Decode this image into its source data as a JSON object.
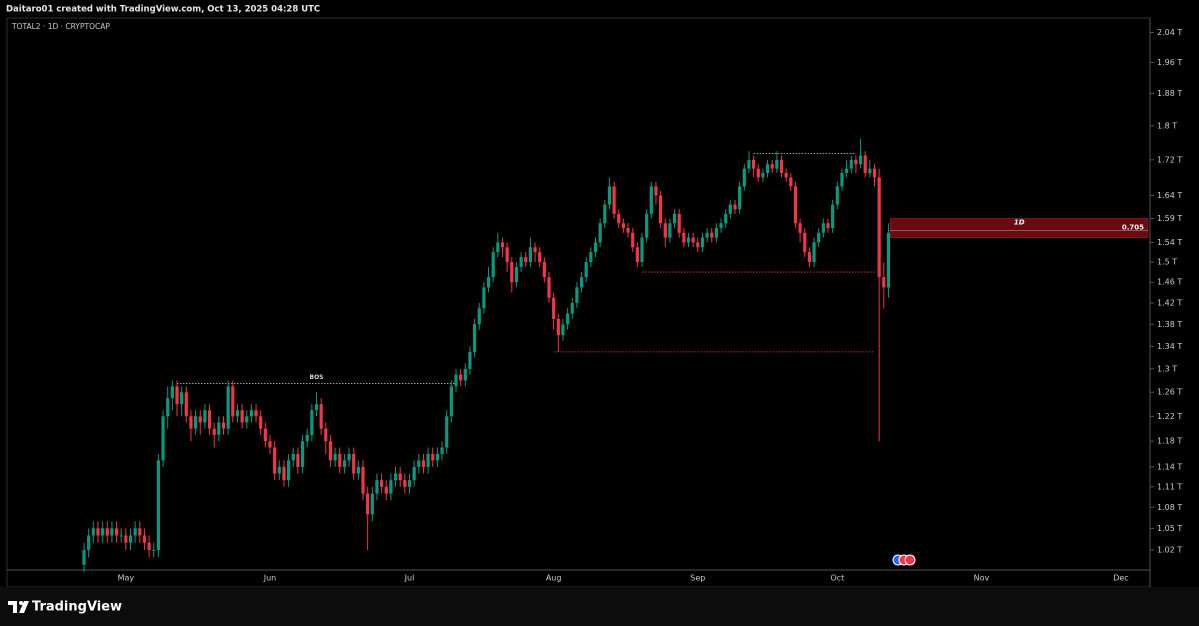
{
  "header": "Daitaro01 created with TradingView.com, Oct 13, 2025 04:28 UTC",
  "footer": "TradingView",
  "chart_data": {
    "type": "candlestick",
    "title": "TOTAL2 · 1D · CRYPTOCAP",
    "xticks": [
      "May",
      "Jun",
      "Jul",
      "Aug",
      "Sep",
      "Oct",
      "Nov",
      "Dec"
    ],
    "log_scale": true,
    "grid": false,
    "up_color": "#089981",
    "down_color": "#f23645",
    "ylim": [
      0.993,
      2.08
    ],
    "yticks": [
      {
        "value": 2.04,
        "label": "2.04 T"
      },
      {
        "value": 1.96,
        "label": "1.96 T"
      },
      {
        "value": 1.88,
        "label": "1.88 T"
      },
      {
        "value": 1.8,
        "label": "1.8 T"
      },
      {
        "value": 1.72,
        "label": "1.72 T"
      },
      {
        "value": 1.64,
        "label": "1.64 T"
      },
      {
        "value": 1.59,
        "label": "1.59 T"
      },
      {
        "value": 1.54,
        "label": "1.54 T"
      },
      {
        "value": 1.5,
        "label": "1.5 T"
      },
      {
        "value": 1.46,
        "label": "1.46 T"
      },
      {
        "value": 1.42,
        "label": "1.42 T"
      },
      {
        "value": 1.38,
        "label": "1.38 T"
      },
      {
        "value": 1.34,
        "label": "1.34 T"
      },
      {
        "value": 1.3,
        "label": "1.3 T"
      },
      {
        "value": 1.26,
        "label": "1.26 T"
      },
      {
        "value": 1.22,
        "label": "1.22 T"
      },
      {
        "value": 1.18,
        "label": "1.18 T"
      },
      {
        "value": 1.14,
        "label": "1.14 T"
      },
      {
        "value": 1.11,
        "label": "1.11 T"
      },
      {
        "value": 1.08,
        "label": "1.08 T"
      },
      {
        "value": 1.05,
        "label": "1.05 T"
      },
      {
        "value": 1.02,
        "label": "1.02 T"
      }
    ],
    "levels": [
      {
        "value": 1.275,
        "label": "BOS",
        "color": "#d1d4dc"
      },
      {
        "value": 1.48,
        "color": "#f23645"
      },
      {
        "value": 1.33,
        "color": "#f23645"
      },
      {
        "value": 1.735,
        "color": "#d1d4dc"
      }
    ],
    "zone": {
      "label": "1D",
      "range": [
        1.55,
        1.59
      ],
      "fib": 0.705,
      "fib_value": 1.565,
      "color": "#7a0c12"
    },
    "candles": [
      [
        1.0,
        1.03,
        0.99,
        1.02
      ],
      [
        1.02,
        1.05,
        1.01,
        1.04
      ],
      [
        1.04,
        1.06,
        1.03,
        1.05
      ],
      [
        1.05,
        1.06,
        1.03,
        1.04
      ],
      [
        1.04,
        1.06,
        1.03,
        1.05
      ],
      [
        1.05,
        1.06,
        1.03,
        1.04
      ],
      [
        1.04,
        1.06,
        1.03,
        1.05
      ],
      [
        1.05,
        1.06,
        1.03,
        1.04
      ],
      [
        1.04,
        1.05,
        1.03,
        1.04
      ],
      [
        1.04,
        1.05,
        1.02,
        1.03
      ],
      [
        1.03,
        1.05,
        1.02,
        1.04
      ],
      [
        1.04,
        1.06,
        1.03,
        1.05
      ],
      [
        1.05,
        1.06,
        1.03,
        1.04
      ],
      [
        1.04,
        1.05,
        1.02,
        1.03
      ],
      [
        1.03,
        1.04,
        1.01,
        1.02
      ],
      [
        1.02,
        1.03,
        1.01,
        1.02
      ],
      [
        1.02,
        1.16,
        1.01,
        1.15
      ],
      [
        1.15,
        1.23,
        1.14,
        1.22
      ],
      [
        1.22,
        1.27,
        1.2,
        1.25
      ],
      [
        1.25,
        1.28,
        1.23,
        1.27
      ],
      [
        1.27,
        1.28,
        1.22,
        1.24
      ],
      [
        1.24,
        1.27,
        1.22,
        1.26
      ],
      [
        1.26,
        1.27,
        1.21,
        1.22
      ],
      [
        1.22,
        1.23,
        1.18,
        1.2
      ],
      [
        1.2,
        1.23,
        1.19,
        1.22
      ],
      [
        1.22,
        1.23,
        1.19,
        1.21
      ],
      [
        1.21,
        1.24,
        1.2,
        1.23
      ],
      [
        1.23,
        1.24,
        1.19,
        1.2
      ],
      [
        1.2,
        1.21,
        1.17,
        1.19
      ],
      [
        1.19,
        1.22,
        1.18,
        1.21
      ],
      [
        1.21,
        1.22,
        1.19,
        1.2
      ],
      [
        1.2,
        1.28,
        1.19,
        1.27
      ],
      [
        1.27,
        1.28,
        1.21,
        1.22
      ],
      [
        1.22,
        1.24,
        1.21,
        1.23
      ],
      [
        1.23,
        1.24,
        1.2,
        1.21
      ],
      [
        1.21,
        1.23,
        1.2,
        1.22
      ],
      [
        1.22,
        1.24,
        1.21,
        1.23
      ],
      [
        1.23,
        1.24,
        1.21,
        1.22
      ],
      [
        1.22,
        1.23,
        1.19,
        1.2
      ],
      [
        1.2,
        1.21,
        1.17,
        1.18
      ],
      [
        1.18,
        1.19,
        1.16,
        1.17
      ],
      [
        1.17,
        1.18,
        1.12,
        1.13
      ],
      [
        1.13,
        1.15,
        1.12,
        1.14
      ],
      [
        1.14,
        1.15,
        1.11,
        1.12
      ],
      [
        1.12,
        1.16,
        1.11,
        1.15
      ],
      [
        1.15,
        1.17,
        1.14,
        1.16
      ],
      [
        1.16,
        1.17,
        1.13,
        1.14
      ],
      [
        1.14,
        1.19,
        1.13,
        1.18
      ],
      [
        1.18,
        1.2,
        1.17,
        1.19
      ],
      [
        1.19,
        1.24,
        1.18,
        1.23
      ],
      [
        1.23,
        1.26,
        1.22,
        1.24
      ],
      [
        1.24,
        1.25,
        1.19,
        1.2
      ],
      [
        1.2,
        1.21,
        1.16,
        1.18
      ],
      [
        1.18,
        1.19,
        1.14,
        1.15
      ],
      [
        1.15,
        1.17,
        1.14,
        1.16
      ],
      [
        1.16,
        1.17,
        1.13,
        1.14
      ],
      [
        1.14,
        1.16,
        1.13,
        1.15
      ],
      [
        1.15,
        1.17,
        1.14,
        1.16
      ],
      [
        1.16,
        1.17,
        1.12,
        1.13
      ],
      [
        1.13,
        1.15,
        1.12,
        1.14
      ],
      [
        1.14,
        1.15,
        1.09,
        1.1
      ],
      [
        1.1,
        1.11,
        1.02,
        1.07
      ],
      [
        1.07,
        1.11,
        1.06,
        1.1
      ],
      [
        1.1,
        1.13,
        1.09,
        1.12
      ],
      [
        1.12,
        1.13,
        1.1,
        1.11
      ],
      [
        1.11,
        1.12,
        1.09,
        1.1
      ],
      [
        1.1,
        1.13,
        1.09,
        1.12
      ],
      [
        1.12,
        1.14,
        1.11,
        1.13
      ],
      [
        1.13,
        1.14,
        1.11,
        1.12
      ],
      [
        1.12,
        1.13,
        1.1,
        1.11
      ],
      [
        1.11,
        1.13,
        1.1,
        1.12
      ],
      [
        1.12,
        1.15,
        1.11,
        1.14
      ],
      [
        1.14,
        1.16,
        1.13,
        1.15
      ],
      [
        1.15,
        1.16,
        1.13,
        1.14
      ],
      [
        1.14,
        1.17,
        1.13,
        1.16
      ],
      [
        1.16,
        1.17,
        1.14,
        1.15
      ],
      [
        1.15,
        1.17,
        1.14,
        1.16
      ],
      [
        1.16,
        1.18,
        1.15,
        1.17
      ],
      [
        1.17,
        1.23,
        1.16,
        1.22
      ],
      [
        1.22,
        1.28,
        1.21,
        1.27
      ],
      [
        1.27,
        1.3,
        1.26,
        1.29
      ],
      [
        1.29,
        1.3,
        1.27,
        1.28
      ],
      [
        1.28,
        1.31,
        1.27,
        1.3
      ],
      [
        1.3,
        1.34,
        1.29,
        1.33
      ],
      [
        1.33,
        1.39,
        1.32,
        1.38
      ],
      [
        1.38,
        1.42,
        1.37,
        1.41
      ],
      [
        1.41,
        1.46,
        1.4,
        1.45
      ],
      [
        1.45,
        1.49,
        1.44,
        1.47
      ],
      [
        1.47,
        1.53,
        1.46,
        1.52
      ],
      [
        1.52,
        1.56,
        1.51,
        1.54
      ],
      [
        1.54,
        1.55,
        1.51,
        1.53
      ],
      [
        1.53,
        1.54,
        1.48,
        1.5
      ],
      [
        1.5,
        1.51,
        1.44,
        1.46
      ],
      [
        1.46,
        1.5,
        1.45,
        1.49
      ],
      [
        1.49,
        1.52,
        1.48,
        1.51
      ],
      [
        1.51,
        1.52,
        1.49,
        1.5
      ],
      [
        1.5,
        1.55,
        1.49,
        1.53
      ],
      [
        1.53,
        1.54,
        1.5,
        1.52
      ],
      [
        1.52,
        1.53,
        1.49,
        1.5
      ],
      [
        1.5,
        1.51,
        1.46,
        1.47
      ],
      [
        1.47,
        1.48,
        1.42,
        1.43
      ],
      [
        1.43,
        1.44,
        1.37,
        1.39
      ],
      [
        1.39,
        1.4,
        1.33,
        1.36
      ],
      [
        1.36,
        1.39,
        1.35,
        1.38
      ],
      [
        1.38,
        1.41,
        1.37,
        1.4
      ],
      [
        1.4,
        1.43,
        1.39,
        1.42
      ],
      [
        1.42,
        1.46,
        1.41,
        1.45
      ],
      [
        1.45,
        1.48,
        1.44,
        1.47
      ],
      [
        1.47,
        1.51,
        1.46,
        1.5
      ],
      [
        1.5,
        1.53,
        1.49,
        1.52
      ],
      [
        1.52,
        1.55,
        1.51,
        1.54
      ],
      [
        1.54,
        1.59,
        1.53,
        1.58
      ],
      [
        1.58,
        1.63,
        1.57,
        1.62
      ],
      [
        1.62,
        1.68,
        1.61,
        1.66
      ],
      [
        1.66,
        1.67,
        1.59,
        1.6
      ],
      [
        1.6,
        1.61,
        1.57,
        1.58
      ],
      [
        1.58,
        1.59,
        1.56,
        1.57
      ],
      [
        1.57,
        1.58,
        1.55,
        1.56
      ],
      [
        1.56,
        1.57,
        1.52,
        1.53
      ],
      [
        1.53,
        1.54,
        1.49,
        1.5
      ],
      [
        1.5,
        1.56,
        1.49,
        1.55
      ],
      [
        1.55,
        1.61,
        1.54,
        1.6
      ],
      [
        1.6,
        1.67,
        1.59,
        1.66
      ],
      [
        1.66,
        1.67,
        1.62,
        1.64
      ],
      [
        1.64,
        1.65,
        1.57,
        1.58
      ],
      [
        1.58,
        1.59,
        1.53,
        1.55
      ],
      [
        1.55,
        1.59,
        1.54,
        1.58
      ],
      [
        1.58,
        1.61,
        1.57,
        1.6
      ],
      [
        1.6,
        1.61,
        1.55,
        1.56
      ],
      [
        1.56,
        1.57,
        1.53,
        1.54
      ],
      [
        1.54,
        1.56,
        1.53,
        1.55
      ],
      [
        1.55,
        1.56,
        1.53,
        1.54
      ],
      [
        1.54,
        1.55,
        1.52,
        1.53
      ],
      [
        1.53,
        1.56,
        1.52,
        1.55
      ],
      [
        1.55,
        1.57,
        1.54,
        1.56
      ],
      [
        1.56,
        1.57,
        1.54,
        1.55
      ],
      [
        1.55,
        1.58,
        1.54,
        1.57
      ],
      [
        1.57,
        1.59,
        1.56,
        1.58
      ],
      [
        1.58,
        1.61,
        1.57,
        1.6
      ],
      [
        1.6,
        1.63,
        1.59,
        1.62
      ],
      [
        1.62,
        1.63,
        1.6,
        1.61
      ],
      [
        1.61,
        1.67,
        1.6,
        1.66
      ],
      [
        1.66,
        1.71,
        1.65,
        1.7
      ],
      [
        1.7,
        1.74,
        1.69,
        1.72
      ],
      [
        1.72,
        1.73,
        1.68,
        1.7
      ],
      [
        1.7,
        1.71,
        1.67,
        1.68
      ],
      [
        1.68,
        1.7,
        1.67,
        1.69
      ],
      [
        1.69,
        1.72,
        1.68,
        1.71
      ],
      [
        1.71,
        1.72,
        1.69,
        1.7
      ],
      [
        1.7,
        1.74,
        1.69,
        1.72
      ],
      [
        1.72,
        1.73,
        1.68,
        1.69
      ],
      [
        1.69,
        1.7,
        1.67,
        1.68
      ],
      [
        1.68,
        1.69,
        1.65,
        1.66
      ],
      [
        1.66,
        1.67,
        1.57,
        1.58
      ],
      [
        1.58,
        1.59,
        1.54,
        1.56
      ],
      [
        1.56,
        1.57,
        1.51,
        1.52
      ],
      [
        1.52,
        1.53,
        1.49,
        1.5
      ],
      [
        1.5,
        1.55,
        1.49,
        1.54
      ],
      [
        1.54,
        1.57,
        1.53,
        1.56
      ],
      [
        1.56,
        1.59,
        1.55,
        1.58
      ],
      [
        1.58,
        1.59,
        1.56,
        1.57
      ],
      [
        1.57,
        1.63,
        1.56,
        1.62
      ],
      [
        1.62,
        1.67,
        1.61,
        1.66
      ],
      [
        1.66,
        1.7,
        1.65,
        1.69
      ],
      [
        1.69,
        1.72,
        1.68,
        1.7
      ],
      [
        1.7,
        1.73,
        1.69,
        1.72
      ],
      [
        1.72,
        1.73,
        1.69,
        1.71
      ],
      [
        1.71,
        1.77,
        1.7,
        1.73
      ],
      [
        1.73,
        1.74,
        1.68,
        1.69
      ],
      [
        1.69,
        1.72,
        1.68,
        1.7
      ],
      [
        1.7,
        1.71,
        1.66,
        1.68
      ],
      [
        1.68,
        1.7,
        1.18,
        1.47
      ],
      [
        1.47,
        1.5,
        1.41,
        1.45
      ],
      [
        1.45,
        1.58,
        1.43,
        1.56
      ]
    ]
  }
}
